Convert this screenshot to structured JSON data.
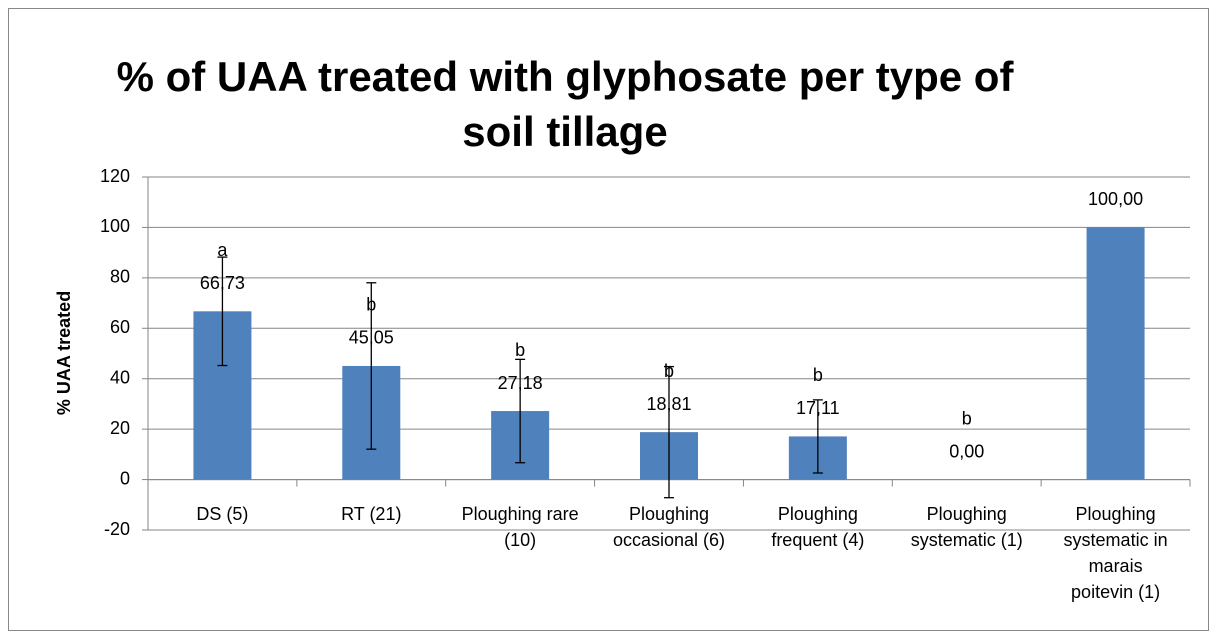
{
  "chart_data": {
    "type": "bar",
    "title": "% of UAA treated with glyphosate per type of soil tillage",
    "y_label": "% UAA treated",
    "categories": [
      "DS (5)",
      "RT (21)",
      "Ploughing rare (10)",
      "Ploughing occasional (6)",
      "Ploughing frequent (4)",
      "Ploughing systematic (1)",
      "Ploughing systematic in marais poitevin (1)"
    ],
    "values": [
      66.73,
      45.05,
      27.18,
      18.81,
      17.11,
      0,
      100
    ],
    "value_labels": [
      "66,73",
      "45,05",
      "27,18",
      "18,81",
      "17,11",
      "0,00",
      "100,00"
    ],
    "errors": [
      21.5,
      33,
      20.5,
      26,
      14.5,
      null,
      null
    ],
    "group_letters": [
      "a",
      "b",
      "b",
      "b",
      "b",
      "b",
      null
    ],
    "color": "#4f81bd",
    "ylim": [
      -20,
      120
    ],
    "yticks": [
      -20,
      0,
      20,
      40,
      60,
      80,
      100,
      120
    ],
    "grid": true
  }
}
